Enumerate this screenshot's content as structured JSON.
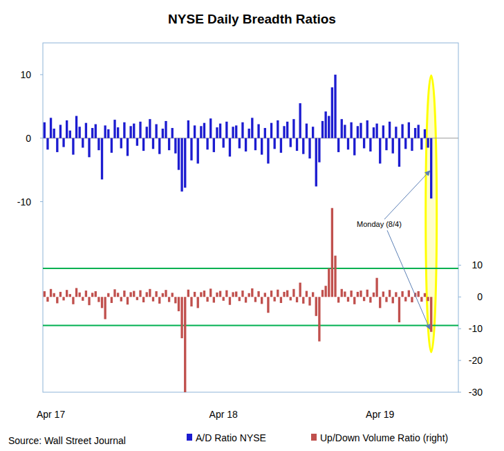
{
  "chart_data": {
    "type": "bar",
    "title": "NYSE Daily Breadth Ratios",
    "categories": [
      null,
      null,
      "Apr 17",
      null,
      null,
      null,
      null,
      null,
      null,
      null,
      null,
      null,
      null,
      null,
      null,
      null,
      null,
      null,
      null,
      null,
      null,
      null,
      null,
      null,
      null,
      null,
      null,
      null,
      null,
      null,
      null,
      null,
      null,
      null,
      null,
      null,
      null,
      null,
      null,
      null,
      null,
      null,
      null,
      null,
      null,
      null,
      null,
      null,
      null,
      null,
      null,
      null,
      null,
      null,
      null,
      null,
      "Apr 18",
      null,
      null,
      null,
      null,
      null,
      null,
      null,
      null,
      null,
      null,
      null,
      null,
      null,
      null,
      null,
      null,
      null,
      null,
      null,
      null,
      null,
      null,
      null,
      null,
      null,
      null,
      null,
      null,
      null,
      null,
      null,
      null,
      null,
      null,
      null,
      null,
      null,
      null,
      null,
      null,
      null,
      null,
      null,
      null,
      null,
      null,
      null,
      null,
      "Apr 19",
      null,
      null,
      null,
      null,
      null,
      null,
      null,
      null,
      null,
      null,
      null,
      null,
      null,
      null,
      null,
      null,
      null,
      null,
      null,
      null,
      null,
      null,
      null,
      null
    ],
    "series": [
      {
        "name": "A/D Ratio NYSE",
        "color": "#1c1cd0",
        "values": [
          2.5,
          -1.8,
          3.2,
          1.5,
          -2.2,
          2.1,
          -1.4,
          2.8,
          1.2,
          -2.6,
          3.5,
          1.8,
          -1.5,
          2.4,
          -3.0,
          1.6,
          2.2,
          -1.9,
          -6.5,
          2.0,
          1.4,
          -2.3,
          2.9,
          1.7,
          -1.6,
          2.5,
          -2.8,
          1.9,
          2.3,
          -1.2,
          2.6,
          -2.0,
          1.8,
          3.0,
          -1.7,
          2.2,
          -2.5,
          1.5,
          2.7,
          -1.9,
          1.6,
          -2.4,
          -5.0,
          -8.4,
          -7.8,
          2.8,
          -3.5,
          2.0,
          -4.0,
          1.9,
          2.4,
          -1.8,
          3.1,
          -2.2,
          1.7,
          2.3,
          -1.5,
          2.6,
          -2.9,
          1.8,
          2.0,
          -1.6,
          2.5,
          -2.1,
          1.5,
          3.2,
          -1.9,
          2.2,
          -2.6,
          1.6,
          -4.0,
          2.4,
          -1.7,
          2.8,
          -2.3,
          1.9,
          2.6,
          -1.4,
          3.0,
          -2.0,
          5.5,
          -2.5,
          2.3,
          -3.2,
          1.8,
          -7.6,
          -3.8,
          2.7,
          4.2,
          3.5,
          8.0,
          10.0,
          -2.2,
          3.0,
          2.1,
          -1.8,
          2.5,
          -2.7,
          1.9,
          2.4,
          -1.6,
          2.8,
          -2.1,
          1.7,
          2.3,
          -4.0,
          2.0,
          -1.9,
          2.6,
          -2.4,
          1.8,
          -4.5,
          2.2,
          -1.7,
          2.5,
          -2.0,
          1.6,
          2.1,
          -1.8,
          1.4,
          -1.5,
          -9.5,
          null,
          null,
          null,
          null,
          null,
          null,
          null,
          null
        ]
      },
      {
        "name": "Up/Down Volume Ratio (right)",
        "color": "#c0504d",
        "axis": "y2",
        "values": [
          1.8,
          -1.5,
          2.5,
          1.2,
          -2.0,
          1.6,
          -1.1,
          2.2,
          0.9,
          -2.3,
          2.8,
          1.4,
          -1.2,
          2.0,
          -2.6,
          1.3,
          1.8,
          -1.6,
          -3.5,
          -7.0,
          1.2,
          -1.9,
          2.4,
          1.3,
          -1.4,
          2.0,
          -2.4,
          1.5,
          1.9,
          -1.0,
          2.1,
          -1.7,
          1.5,
          2.5,
          -1.4,
          1.8,
          -2.1,
          1.2,
          2.2,
          -1.6,
          1.3,
          -2.0,
          -4.5,
          -13.0,
          -30.0,
          2.3,
          -3.0,
          1.6,
          -3.5,
          1.5,
          2.0,
          -1.5,
          2.6,
          -1.8,
          1.4,
          1.9,
          -1.2,
          2.1,
          -2.5,
          1.5,
          1.7,
          -1.3,
          2.0,
          -1.8,
          1.2,
          2.7,
          -1.6,
          1.8,
          -2.2,
          1.3,
          -5.0,
          2.0,
          -1.4,
          2.3,
          -1.9,
          1.6,
          2.1,
          -1.1,
          2.5,
          -1.7,
          4.5,
          -2.1,
          1.9,
          -2.7,
          1.5,
          -6.0,
          -14.0,
          2.2,
          3.5,
          9.0,
          28.0,
          13.0,
          -1.8,
          2.5,
          1.7,
          -1.5,
          2.0,
          -2.3,
          1.6,
          2.0,
          -1.3,
          2.3,
          -1.8,
          1.4,
          6.0,
          -3.5,
          1.7,
          -1.6,
          2.2,
          -2.0,
          1.5,
          -8.0,
          1.8,
          -1.4,
          2.1,
          -1.7,
          1.3,
          1.8,
          -1.5,
          1.2,
          -1.3,
          -11.0,
          null,
          null,
          null,
          null,
          null,
          null,
          null,
          null
        ]
      }
    ],
    "ylim": [
      -40,
      15
    ],
    "yticks": [
      -10,
      0,
      10
    ],
    "y2lim": [
      -30,
      80
    ],
    "y2ticks": [
      -30,
      -20,
      -10,
      0,
      10
    ],
    "thresholds": [
      9,
      -9
    ],
    "annotations": [
      "Monday (8/4)"
    ],
    "source": "Source: Wall Street Journal",
    "legend": "bottom"
  }
}
